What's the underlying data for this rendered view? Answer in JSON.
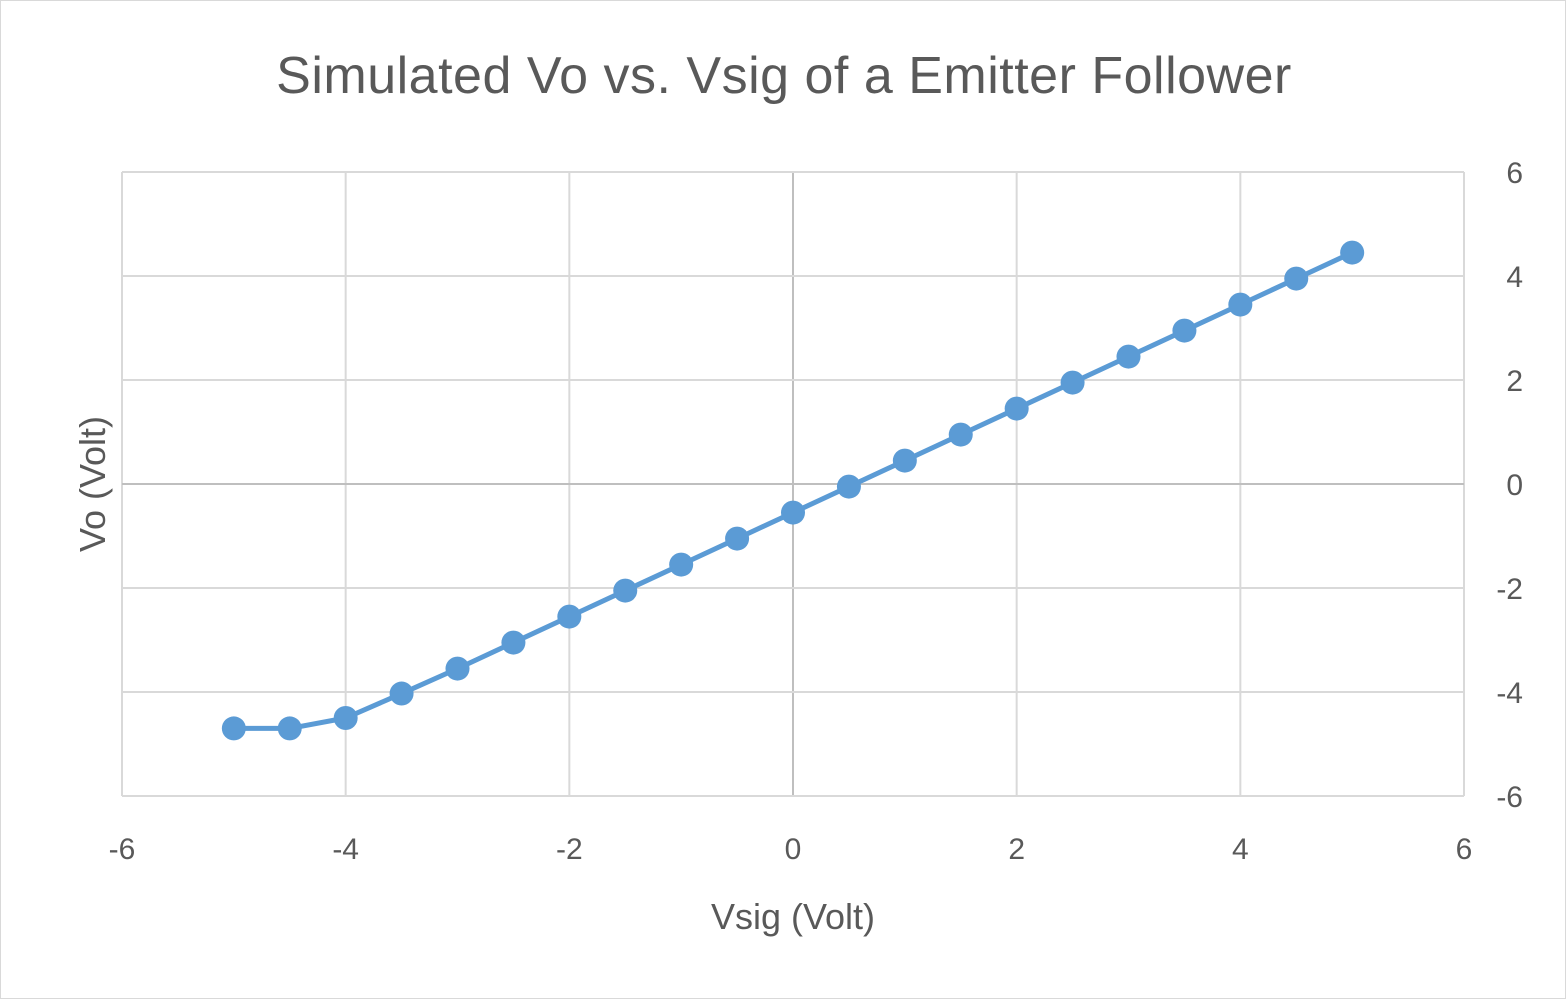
{
  "chart_data": {
    "type": "scatter",
    "title": "Simulated Vo vs. Vsig of a Emitter Follower",
    "xlabel": "Vsig (Volt)",
    "ylabel": "Vo (Volt)",
    "xlim": [
      -6,
      6
    ],
    "ylim": [
      -6,
      6
    ],
    "x_ticks": [
      -6,
      -4,
      -2,
      0,
      2,
      4,
      6
    ],
    "y_ticks": [
      -6,
      -4,
      -2,
      0,
      2,
      4,
      6
    ],
    "grid": true,
    "y_axis_side": "right",
    "series_color": "#5b9bd5",
    "series": [
      {
        "x": [
          -5,
          -4.5,
          -4,
          -3.5,
          -3,
          -2.5,
          -2,
          -1.5,
          -1,
          -0.5,
          0,
          0.5,
          1,
          1.5,
          2,
          2.5,
          3,
          3.5,
          4,
          4.5,
          5
        ],
        "y": [
          -4.7,
          -4.7,
          -4.5,
          -4.03,
          -3.55,
          -3.05,
          -2.55,
          -2.05,
          -1.55,
          -1.05,
          -0.55,
          -0.05,
          0.45,
          0.95,
          1.45,
          1.95,
          2.45,
          2.95,
          3.45,
          3.95,
          4.45
        ]
      }
    ]
  }
}
